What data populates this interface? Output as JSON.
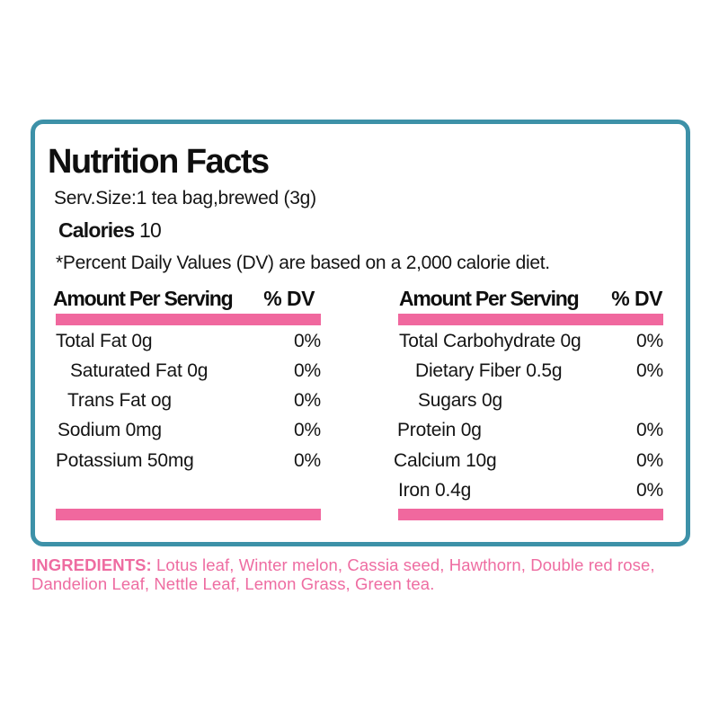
{
  "page": {
    "background": "#ffffff"
  },
  "label": {
    "border_color": "#3d91a8",
    "accent_pink": "#f0689e",
    "title": "Nutrition Facts",
    "serving_size": "Serv.Size:1 tea bag,brewed (3g)",
    "calories_label": "Calories",
    "calories_value": "10",
    "dv_note": "*Percent Daily Values (DV) are based on a 2,000 calorie diet.",
    "columns": [
      {
        "header": "Amount Per Serving",
        "dv_header": "% DV",
        "rows": [
          {
            "label": "Total Fat 0g",
            "dv": "0%",
            "indent": 0
          },
          {
            "label": "Saturated Fat 0g",
            "dv": "0%",
            "indent": 1
          },
          {
            "label": "Trans Fat og",
            "dv": "0%",
            "indent": 1
          },
          {
            "label": "Sodium 0mg",
            "dv": "0%",
            "indent": 0
          },
          {
            "label": "Potassium 50mg",
            "dv": "0%",
            "indent": 0
          }
        ]
      },
      {
        "header": "Amount Per Serving",
        "dv_header": "% DV",
        "rows": [
          {
            "label": "Total Carbohydrate 0g",
            "dv": "0%",
            "indent": 0
          },
          {
            "label": "Dietary Fiber 0.5g",
            "dv": "0%",
            "indent": 1
          },
          {
            "label": "Sugars 0g",
            "dv": "",
            "indent": 1
          },
          {
            "label": "Protein 0g",
            "dv": "0%",
            "indent": 0
          },
          {
            "label": "Calcium 10g",
            "dv": "0%",
            "indent": 0
          },
          {
            "label": "Iron 0.4g",
            "dv": "0%",
            "indent": 0
          }
        ]
      }
    ]
  },
  "ingredients": {
    "label": "INGREDIENTS:",
    "text": "Lotus leaf, Winter melon, Cassia seed, Hawthorn, Double red rose, Dandelion Leaf, Nettle Leaf, Lemon Grass, Green tea.",
    "color": "#ee6ca1"
  }
}
